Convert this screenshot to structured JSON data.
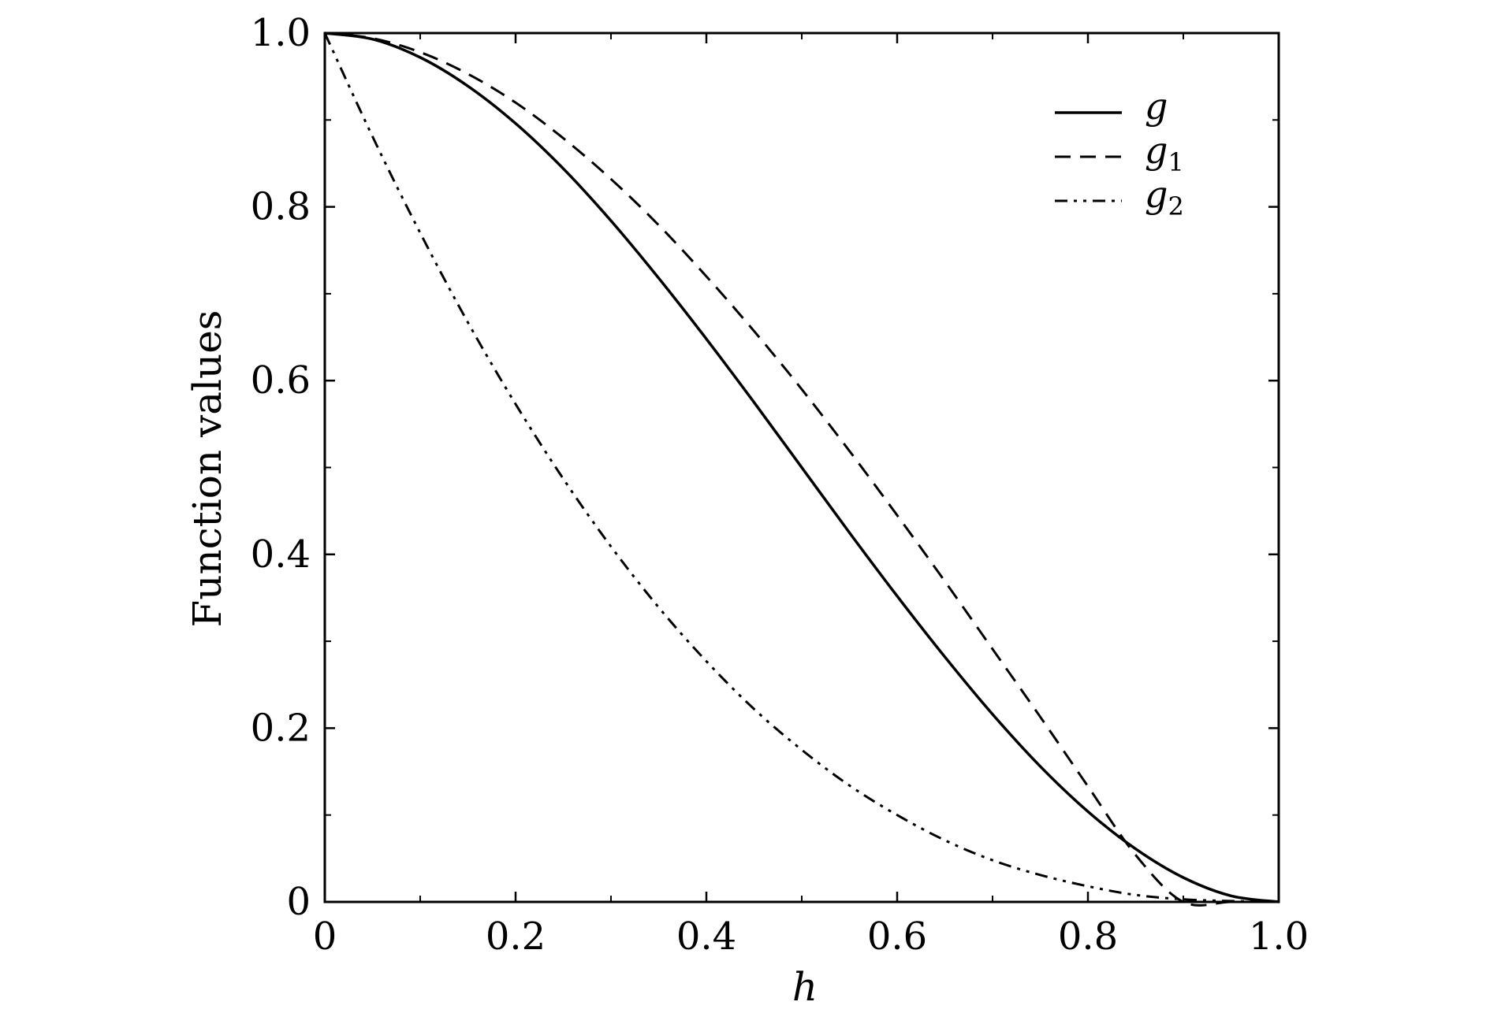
{
  "chart_data": {
    "type": "line",
    "xlabel": "h",
    "ylabel": "Function values",
    "xlim": [
      0,
      1.0
    ],
    "ylim": [
      0,
      1.0
    ],
    "grid": false,
    "legend_position": "top-right",
    "x_ticks": [
      "0",
      "0.2",
      "0.4",
      "0.6",
      "0.8",
      "1.0"
    ],
    "y_ticks": [
      "0",
      "0.2",
      "0.4",
      "0.6",
      "0.8",
      "1.0"
    ],
    "x_tick_values": [
      0,
      0.2,
      0.4,
      0.6,
      0.8,
      1.0
    ],
    "y_tick_values": [
      0,
      0.2,
      0.4,
      0.6,
      0.8,
      1.0
    ],
    "x_minor_ticks": [
      0.1,
      0.3,
      0.5,
      0.7,
      0.9
    ],
    "y_minor_ticks": [
      0.1,
      0.3,
      0.5,
      0.7,
      0.9
    ],
    "x": [
      0,
      0.05,
      0.1,
      0.15,
      0.2,
      0.25,
      0.3,
      0.35,
      0.4,
      0.45,
      0.5,
      0.55,
      0.6,
      0.65,
      0.7,
      0.75,
      0.8,
      0.85,
      0.9,
      0.95,
      1.0
    ],
    "series": [
      {
        "name": "g",
        "name_base": "g",
        "name_sub": "",
        "dash": "solid",
        "color": "#000000",
        "values": [
          1.0,
          0.993,
          0.972,
          0.939,
          0.896,
          0.844,
          0.784,
          0.718,
          0.648,
          0.575,
          0.5,
          0.425,
          0.352,
          0.282,
          0.216,
          0.156,
          0.104,
          0.061,
          0.028,
          0.007,
          0.0
        ]
      },
      {
        "name": "g1",
        "name_base": "g",
        "name_sub": "1",
        "dash": "dashed",
        "color": "#000000",
        "values": [
          1.0,
          0.994,
          0.978,
          0.953,
          0.92,
          0.879,
          0.832,
          0.779,
          0.72,
          0.657,
          0.59,
          0.519,
          0.445,
          0.369,
          0.291,
          0.213,
          0.133,
          0.054,
          -0.0,
          0.0,
          0.0
        ]
      },
      {
        "name": "g2",
        "name_base": "g",
        "name_sub": "2",
        "dash": "dash-dot-dot",
        "color": "#000000",
        "values": [
          1.0,
          0.881,
          0.77,
          0.667,
          0.573,
          0.487,
          0.409,
          0.339,
          0.277,
          0.222,
          0.175,
          0.134,
          0.1,
          0.071,
          0.048,
          0.031,
          0.018,
          0.008,
          0.003,
          0.001,
          0.0
        ]
      }
    ]
  }
}
